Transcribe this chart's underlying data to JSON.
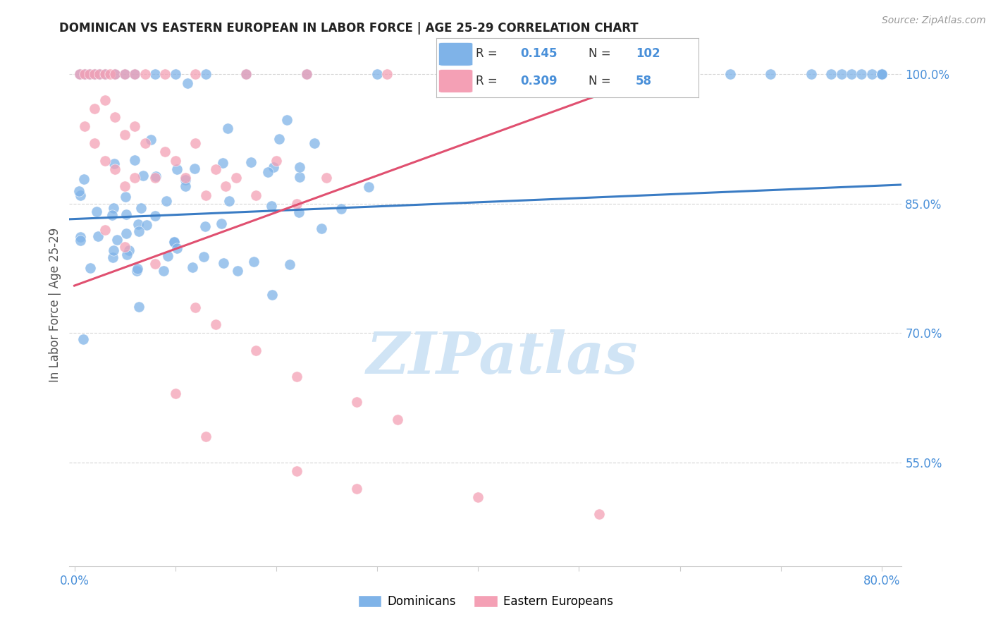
{
  "title": "DOMINICAN VS EASTERN EUROPEAN IN LABOR FORCE | AGE 25-29 CORRELATION CHART",
  "source": "Source: ZipAtlas.com",
  "ylabel_left": "In Labor Force | Age 25-29",
  "x_tick_labels": [
    "0.0%",
    "",
    "",
    "",
    "",
    "",
    "",
    "",
    "80.0%"
  ],
  "x_tick_vals": [
    0.0,
    0.1,
    0.2,
    0.3,
    0.4,
    0.5,
    0.6,
    0.7,
    0.8
  ],
  "y_tick_labels": [
    "55.0%",
    "70.0%",
    "85.0%",
    "100.0%"
  ],
  "y_tick_vals": [
    0.55,
    0.7,
    0.85,
    1.0
  ],
  "xlim": [
    -0.005,
    0.82
  ],
  "ylim": [
    0.43,
    1.035
  ],
  "blue_color": "#7fb3e8",
  "pink_color": "#f4a0b5",
  "trend_blue": "#3a7cc4",
  "trend_pink": "#e05070",
  "r_blue": 0.145,
  "n_blue": 102,
  "r_pink": 0.309,
  "n_pink": 58,
  "legend_label_blue": "Dominicans",
  "legend_label_pink": "Eastern Europeans",
  "grid_color": "#cccccc",
  "background_color": "#ffffff",
  "title_color": "#222222",
  "axis_label_color": "#555555",
  "right_axis_color": "#4a90d9",
  "watermark_color": "#d0e4f5"
}
